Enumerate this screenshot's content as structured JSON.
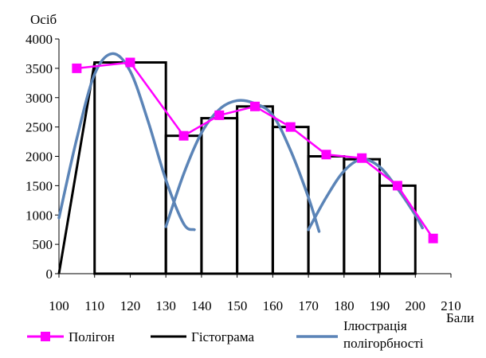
{
  "chart_data": {
    "type": "line",
    "xlabel": "Бали",
    "ylabel": "Осіб",
    "xlim": [
      100,
      210
    ],
    "ylim": [
      0,
      4000
    ],
    "x_ticks": [
      "100",
      "110",
      "120",
      "130",
      "140",
      "150",
      "160",
      "170",
      "180",
      "190",
      "200",
      "210"
    ],
    "y_ticks": [
      "0",
      "500",
      "1000",
      "1500",
      "2000",
      "2500",
      "3000",
      "3500",
      "4000"
    ],
    "histogram": {
      "name": "Гістограма",
      "bins": [
        {
          "from": 110,
          "to": 130,
          "value": 3600
        },
        {
          "from": 130,
          "to": 140,
          "value": 2350
        },
        {
          "from": 140,
          "to": 150,
          "value": 2650
        },
        {
          "from": 150,
          "to": 160,
          "value": 2850
        },
        {
          "from": 160,
          "to": 170,
          "value": 2500
        },
        {
          "from": 170,
          "to": 180,
          "value": 2000
        },
        {
          "from": 180,
          "to": 190,
          "value": 1950
        },
        {
          "from": 190,
          "to": 200,
          "value": 1500
        }
      ],
      "lead_in": [
        [
          100,
          0
        ],
        [
          110,
          3600
        ]
      ]
    },
    "polygon": {
      "name": "Полігон",
      "points": [
        [
          105,
          3500
        ],
        [
          120,
          3600
        ],
        [
          135,
          2350
        ],
        [
          145,
          2700
        ],
        [
          155,
          2850
        ],
        [
          165,
          2500
        ],
        [
          175,
          2030
        ],
        [
          185,
          1970
        ],
        [
          195,
          1500
        ],
        [
          205,
          600
        ]
      ]
    },
    "polymodality": {
      "name": "Ілюстрація полігорбності",
      "curves": [
        [
          [
            100,
            950
          ],
          [
            105,
            2300
          ],
          [
            110,
            3400
          ],
          [
            115,
            3750
          ],
          [
            120,
            3450
          ],
          [
            125,
            2600
          ],
          [
            130,
            1600
          ],
          [
            135,
            850
          ],
          [
            138,
            750
          ]
        ],
        [
          [
            130,
            800
          ],
          [
            135,
            1700
          ],
          [
            140,
            2400
          ],
          [
            145,
            2800
          ],
          [
            150,
            2950
          ],
          [
            155,
            2900
          ],
          [
            160,
            2700
          ],
          [
            165,
            2100
          ],
          [
            170,
            1300
          ],
          [
            173,
            720
          ]
        ],
        [
          [
            170,
            750
          ],
          [
            175,
            1300
          ],
          [
            180,
            1750
          ],
          [
            185,
            1950
          ],
          [
            190,
            1820
          ],
          [
            195,
            1450
          ],
          [
            200,
            1000
          ],
          [
            202,
            780
          ]
        ]
      ]
    },
    "colors": {
      "polygon": "#ff00ff",
      "histogram": "#000000",
      "polymodality": "#5b84b7"
    }
  },
  "legend": {
    "items": [
      {
        "key": "polygon",
        "label": "Полігон"
      },
      {
        "key": "histogram",
        "label": "Гістограма"
      },
      {
        "key": "polymodality",
        "label_lines": [
          "Ілюстрація",
          "полігорбності"
        ]
      }
    ]
  }
}
